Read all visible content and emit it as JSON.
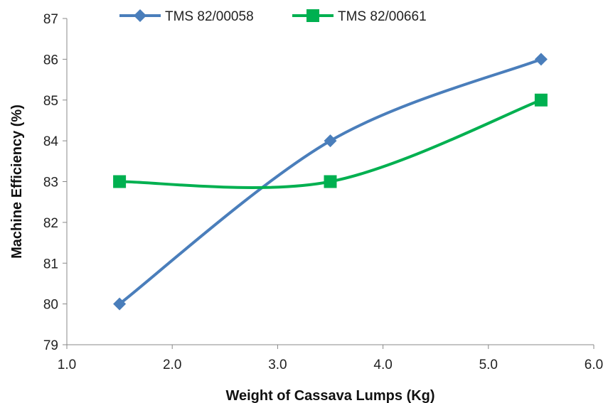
{
  "chart_data": {
    "type": "line",
    "title": "",
    "xlabel": "Weight of Cassava Lumps (Kg)",
    "ylabel": "Machine Efficiency (%)",
    "xlim": [
      1.0,
      6.0
    ],
    "ylim": [
      79,
      87
    ],
    "xticks": [
      1.0,
      2.0,
      3.0,
      4.0,
      5.0,
      6.0
    ],
    "xtick_labels": [
      "1.0",
      "2.0",
      "3.0",
      "4.0",
      "5.0",
      "6.0"
    ],
    "yticks": [
      79,
      80,
      81,
      82,
      83,
      84,
      85,
      86,
      87
    ],
    "ytick_labels": [
      "79",
      "80",
      "81",
      "82",
      "83",
      "84",
      "85",
      "86",
      "87"
    ],
    "grid": false,
    "smooth": true,
    "legend": "top-center",
    "series": [
      {
        "name": "TMS 82/00058",
        "x": [
          1.5,
          3.5,
          5.5
        ],
        "y": [
          80,
          84,
          86
        ],
        "color": "#4a7ebb",
        "marker": "diamond"
      },
      {
        "name": "TMS 82/00661",
        "x": [
          1.5,
          3.5,
          5.5
        ],
        "y": [
          83,
          83,
          85
        ],
        "color": "#00b050",
        "marker": "square"
      }
    ]
  }
}
